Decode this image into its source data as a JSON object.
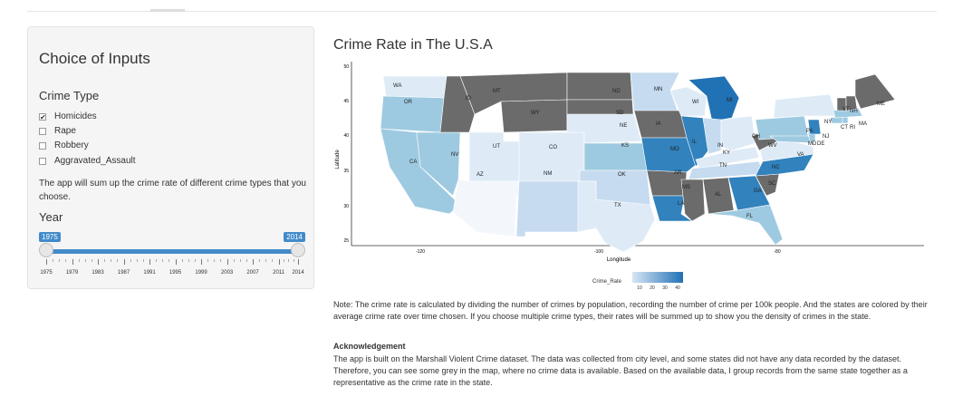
{
  "sidebar": {
    "title": "Choice of Inputs",
    "crime_type_label": "Crime Type",
    "crime_types": [
      {
        "label": "Homicides",
        "checked": true
      },
      {
        "label": "Rape",
        "checked": false
      },
      {
        "label": "Robbery",
        "checked": false
      },
      {
        "label": "Aggravated_Assault",
        "checked": false
      }
    ],
    "help_text": "The app will sum up the crime rate of different crime types that you choose.",
    "year_label": "Year",
    "year_slider": {
      "min": 1975,
      "max": 2014,
      "from": 1975,
      "to": 2014,
      "from_label": "1975",
      "to_label": "2014",
      "tick_labels": [
        "1975",
        "1979",
        "1983",
        "1987",
        "1991",
        "1995",
        "1999",
        "2003",
        "2007",
        "2011",
        "2014"
      ]
    }
  },
  "main": {
    "title": "Crime Rate in The U.S.A",
    "map": {
      "xlabel": "Longitude",
      "ylabel": "Latitude",
      "x_ticks": [
        "-120",
        "-100",
        "-80"
      ],
      "y_ticks": [
        "50",
        "45",
        "40",
        "35",
        "30",
        "25"
      ],
      "states": [
        "WA",
        "OR",
        "ID",
        "MT",
        "ND",
        "MN",
        "WI",
        "MI",
        "ME",
        "SD",
        "WY",
        "NE",
        "IA",
        "VT",
        "NH",
        "NY",
        "MA",
        "CT",
        "RI",
        "NJ",
        "PA",
        "DE",
        "MD",
        "OH",
        "IN",
        "IL",
        "WV",
        "VA",
        "KY",
        "MO",
        "KS",
        "CO",
        "UT",
        "NV",
        "CA",
        "AZ",
        "NM",
        "OK",
        "AR",
        "TN",
        "NC",
        "SC",
        "GA",
        "AL",
        "MS",
        "LA",
        "TX",
        "FL"
      ],
      "colors": {
        "grey": "#6b6b6b",
        "light": "#deebf7",
        "mid": "#9ecae1",
        "dark": "#3182bd",
        "darkest": "#08519c"
      }
    },
    "legend": {
      "title": "Crime_Rate",
      "ticks": [
        "10",
        "20",
        "30",
        "40"
      ]
    },
    "note": "Note: The crime rate is calculated by dividing the number of crimes by population, recording the number of crime per 100k people. And the states are colored by their average crime rate over time chosen. If you choose multiple crime types, their rates will be summed up to show you the density of crimes in the state.",
    "ack_title": "Acknowledgement",
    "ack_body": "The app is built on the Marshall Violent Crime dataset. The data was collected from city level, and some states did not have any data recorded by the dataset. Therefore, you can see some grey in the map, where no crime data is available. Based on the available data, I group records from the same state together as a representative as the crime rate in the state."
  }
}
